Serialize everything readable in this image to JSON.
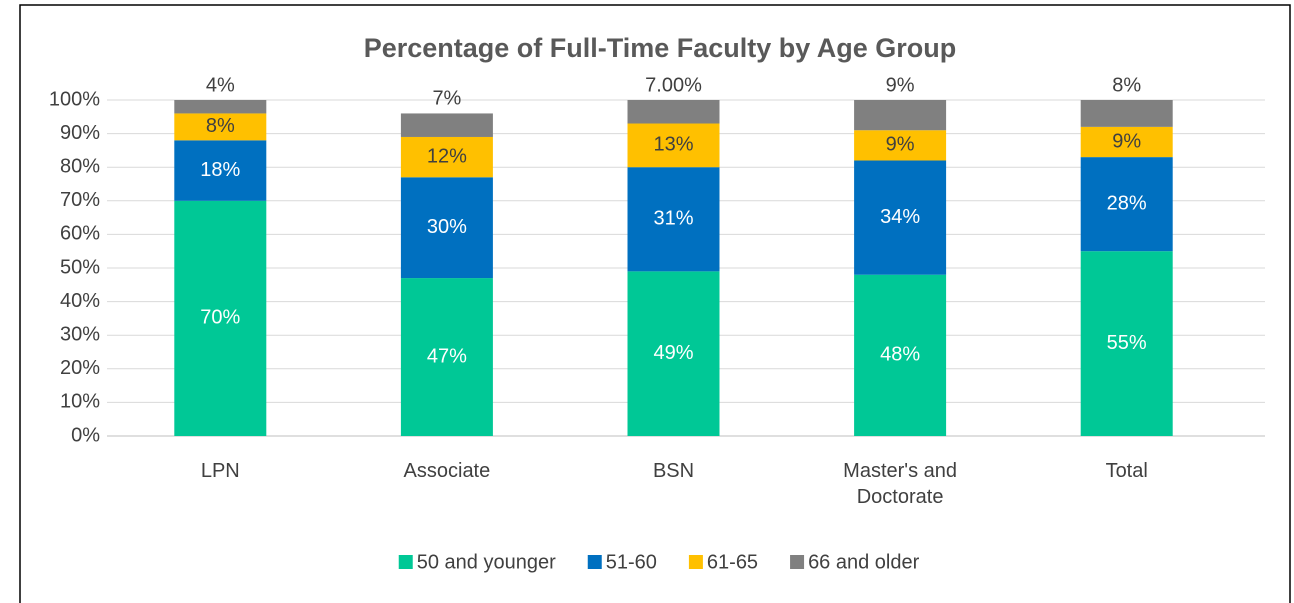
{
  "chart_data": {
    "type": "stacked_bar",
    "title": "Percentage of Full-Time Faculty by Age Group",
    "categories": [
      "LPN",
      "Associate",
      "BSN",
      "Master's and Doctorate",
      "Total"
    ],
    "series": [
      {
        "name": "50 and younger",
        "color": "#00c896",
        "values": [
          70,
          47,
          49,
          48,
          55
        ],
        "value_labels": [
          "70%",
          "47%",
          "49%",
          "48%",
          "55%"
        ]
      },
      {
        "name": "51-60",
        "color": "#0070c0",
        "values": [
          18,
          30,
          31,
          34,
          28
        ],
        "value_labels": [
          "18%",
          "30%",
          "31%",
          "34%",
          "28%"
        ]
      },
      {
        "name": "61-65",
        "color": "#ffc000",
        "values": [
          8,
          12,
          13,
          9,
          9
        ],
        "value_labels": [
          "8%",
          "12%",
          "13%",
          "9%",
          "9%"
        ]
      },
      {
        "name": "66 and older",
        "color": "#808080",
        "values": [
          4,
          7,
          7,
          9,
          8
        ],
        "value_labels": [
          "4%",
          "7%",
          "7.00%",
          "9%",
          "8%"
        ]
      }
    ],
    "ylim": [
      0,
      100
    ],
    "yticks": [
      {
        "value": 0,
        "label": "0%"
      },
      {
        "value": 10,
        "label": "10%"
      },
      {
        "value": 20,
        "label": "20%"
      },
      {
        "value": 30,
        "label": "30%"
      },
      {
        "value": 40,
        "label": "40%"
      },
      {
        "value": 50,
        "label": "50%"
      },
      {
        "value": 60,
        "label": "60%"
      },
      {
        "value": 70,
        "label": "70%"
      },
      {
        "value": 80,
        "label": "80%"
      },
      {
        "value": 90,
        "label": "90%"
      },
      {
        "value": 100,
        "label": "100%"
      }
    ],
    "grid": true,
    "legend": "bottom"
  }
}
